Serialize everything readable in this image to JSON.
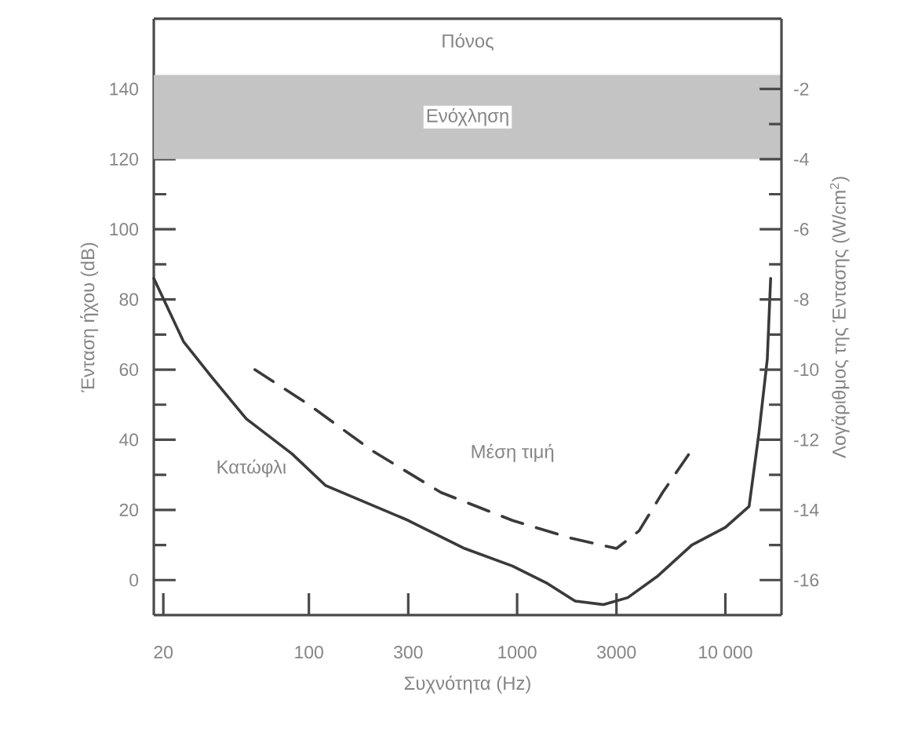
{
  "chart_data": {
    "type": "line",
    "xlabel": "Συχνότητα (Hz)",
    "ylabel": "Ένταση ήχου (dB)",
    "y2label": "Λογάριθμος της Έντασης (W/cm$^{2}$)",
    "log": "x",
    "xlim": [
      18,
      18600
    ],
    "xticks": [
      20,
      100,
      300,
      1000,
      3000,
      {
        "value": 10000,
        "label": "10 000"
      }
    ],
    "ylim": [
      -10,
      160
    ],
    "yticks": [
      0,
      20,
      40,
      60,
      80,
      100,
      120,
      140
    ],
    "y2lim": [
      -17,
      0
    ],
    "y2ticks": [
      -16,
      -14,
      -12,
      -10,
      -8,
      -6,
      -4,
      -2
    ],
    "series": [
      {
        "name": "Κατώφλι",
        "color": "#3a3a3a",
        "line_style": "solid",
        "x": [
          18,
          25,
          34,
          50,
          83,
          120,
          300,
          560,
          950,
          1400,
          1900,
          2600,
          3400,
          4700,
          6900,
          10000,
          13000,
          14500,
          15900,
          16500
        ],
        "values": [
          86,
          68,
          58,
          46,
          36,
          27,
          17,
          9,
          4,
          -1,
          -6,
          -7,
          -5,
          1,
          10,
          15,
          21,
          42,
          63,
          86
        ]
      },
      {
        "name": "Μέση τιμή",
        "color": "#3a3a3a",
        "line_style": "dashed",
        "x": [
          55,
          100,
          200,
          430,
          950,
          1800,
          3000,
          3850,
          5000,
          6700
        ],
        "values": [
          60,
          50,
          37,
          25,
          17,
          12,
          9,
          14,
          25,
          36
        ]
      }
    ],
    "bands": [
      {
        "axis": "y",
        "from": 120,
        "to": 144,
        "label": "Ενόχληση",
        "color": "#c4c4c4"
      }
    ],
    "annotations": [
      "Πόνος"
    ]
  }
}
